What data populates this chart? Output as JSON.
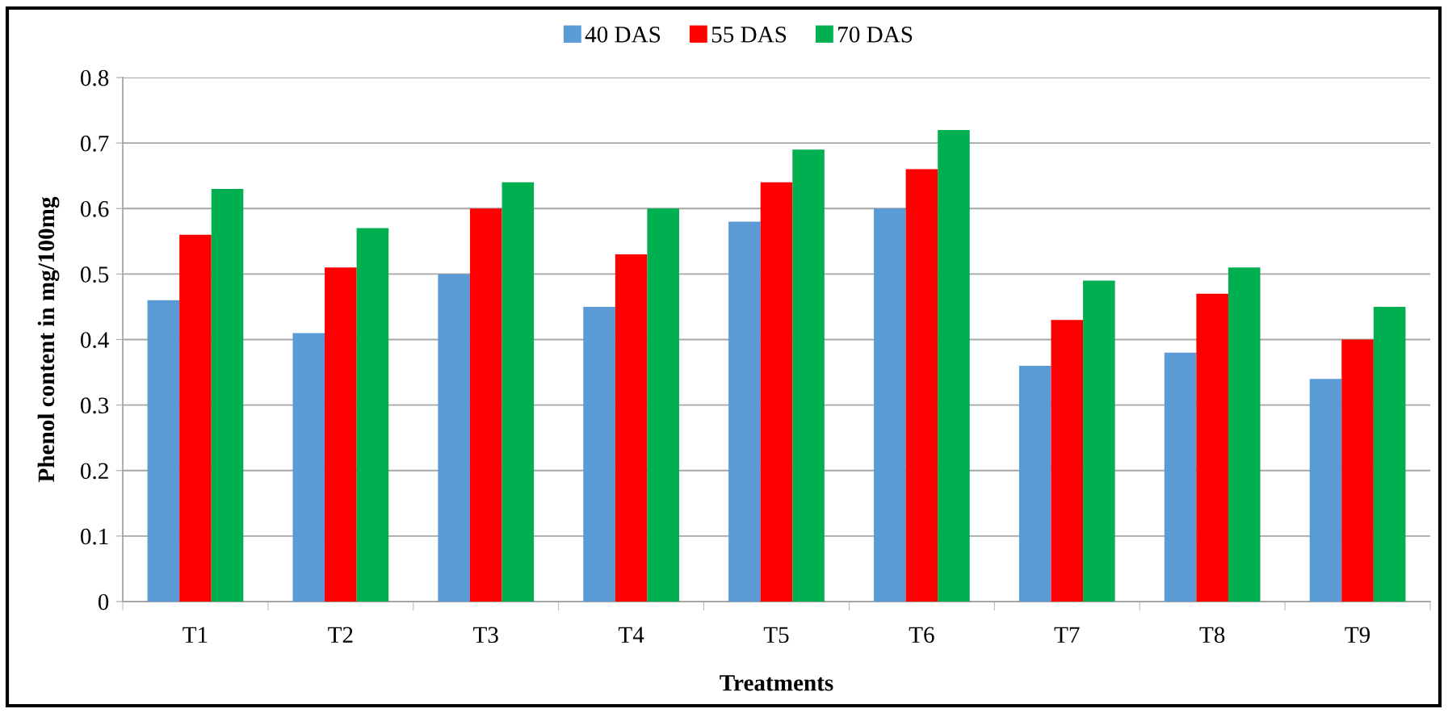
{
  "chart_data": {
    "type": "bar",
    "xlabel": "Treatments",
    "ylabel": "Phenol content in mg/100mg",
    "categories": [
      "T1",
      "T2",
      "T3",
      "T4",
      "T5",
      "T6",
      "T7",
      "T8",
      "T9"
    ],
    "series": [
      {
        "name": "40 DAS",
        "color": "#5b9bd5",
        "values": [
          0.46,
          0.41,
          0.5,
          0.45,
          0.58,
          0.6,
          0.36,
          0.38,
          0.34
        ]
      },
      {
        "name": "55 DAS",
        "color": "#ff0000",
        "values": [
          0.56,
          0.51,
          0.6,
          0.53,
          0.64,
          0.66,
          0.43,
          0.47,
          0.4
        ]
      },
      {
        "name": "70 DAS",
        "color": "#00b050",
        "values": [
          0.63,
          0.57,
          0.64,
          0.6,
          0.69,
          0.72,
          0.49,
          0.51,
          0.45
        ]
      }
    ],
    "ylim": [
      0,
      0.8
    ],
    "yticks": [
      0,
      0.1,
      0.2,
      0.3,
      0.4,
      0.5,
      0.6,
      0.7,
      0.8
    ],
    "grid": "y",
    "legend": "top"
  }
}
